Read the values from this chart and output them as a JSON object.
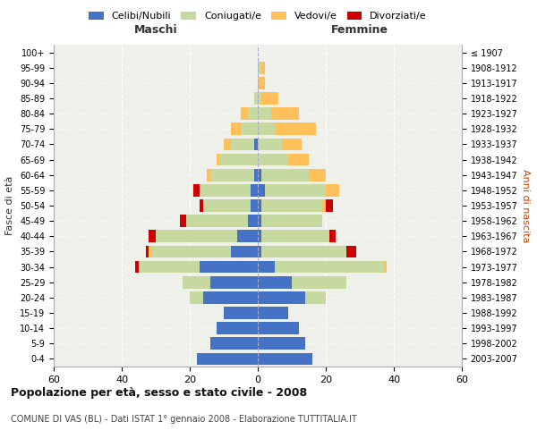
{
  "age_groups": [
    "0-4",
    "5-9",
    "10-14",
    "15-19",
    "20-24",
    "25-29",
    "30-34",
    "35-39",
    "40-44",
    "45-49",
    "50-54",
    "55-59",
    "60-64",
    "65-69",
    "70-74",
    "75-79",
    "80-84",
    "85-89",
    "90-94",
    "95-99",
    "100+"
  ],
  "birth_years": [
    "2003-2007",
    "1998-2002",
    "1993-1997",
    "1988-1992",
    "1983-1987",
    "1978-1982",
    "1973-1977",
    "1968-1972",
    "1963-1967",
    "1958-1962",
    "1953-1957",
    "1948-1952",
    "1943-1947",
    "1938-1942",
    "1933-1937",
    "1928-1932",
    "1923-1927",
    "1918-1922",
    "1913-1917",
    "1908-1912",
    "≤ 1907"
  ],
  "male": {
    "celibi": [
      18,
      14,
      12,
      10,
      16,
      14,
      17,
      8,
      6,
      3,
      2,
      2,
      1,
      0,
      1,
      0,
      0,
      0,
      0,
      0,
      0
    ],
    "coniugati": [
      0,
      0,
      0,
      0,
      4,
      8,
      18,
      23,
      24,
      18,
      14,
      15,
      13,
      11,
      7,
      5,
      3,
      1,
      0,
      0,
      0
    ],
    "vedovi": [
      0,
      0,
      0,
      0,
      0,
      0,
      0,
      1,
      0,
      0,
      0,
      0,
      1,
      1,
      2,
      3,
      2,
      0,
      0,
      0,
      0
    ],
    "divorziati": [
      0,
      0,
      0,
      0,
      0,
      0,
      1,
      1,
      2,
      2,
      1,
      2,
      0,
      0,
      0,
      0,
      0,
      0,
      0,
      0,
      0
    ]
  },
  "female": {
    "nubili": [
      16,
      14,
      12,
      9,
      14,
      10,
      5,
      1,
      1,
      1,
      1,
      2,
      1,
      0,
      0,
      0,
      0,
      0,
      0,
      0,
      0
    ],
    "coniugate": [
      0,
      0,
      0,
      0,
      6,
      16,
      32,
      25,
      20,
      18,
      18,
      18,
      14,
      9,
      7,
      5,
      4,
      1,
      0,
      1,
      0
    ],
    "vedove": [
      0,
      0,
      0,
      0,
      0,
      0,
      1,
      0,
      0,
      0,
      1,
      4,
      5,
      6,
      6,
      12,
      8,
      5,
      2,
      1,
      0
    ],
    "divorziate": [
      0,
      0,
      0,
      0,
      0,
      0,
      0,
      3,
      2,
      0,
      2,
      0,
      0,
      0,
      0,
      0,
      0,
      0,
      0,
      0,
      0
    ]
  },
  "colors": {
    "celibi": "#4472c4",
    "coniugati": "#c5d9a0",
    "vedovi": "#ffc05a",
    "divorziati": "#cc0000"
  },
  "xlim": 60,
  "title": "Popolazione per età, sesso e stato civile - 2008",
  "subtitle": "COMUNE DI VAS (BL) - Dati ISTAT 1° gennaio 2008 - Elaborazione TUTTITALIA.IT",
  "xlabel_left": "Maschi",
  "xlabel_right": "Femmine",
  "ylabel_left": "Fasce di età",
  "ylabel_right": "Anni di nascita",
  "legend_labels": [
    "Celibi/Nubili",
    "Coniugati/e",
    "Vedovi/e",
    "Divorziati/e"
  ],
  "xticks": [
    -60,
    -40,
    -20,
    0,
    20,
    40,
    60
  ],
  "xticklabels": [
    "60",
    "40",
    "20",
    "0",
    "20",
    "40",
    "60"
  ],
  "bg_color": "#ffffff",
  "plot_bg": "#f0f0eb",
  "grid_color": "#ffffff"
}
